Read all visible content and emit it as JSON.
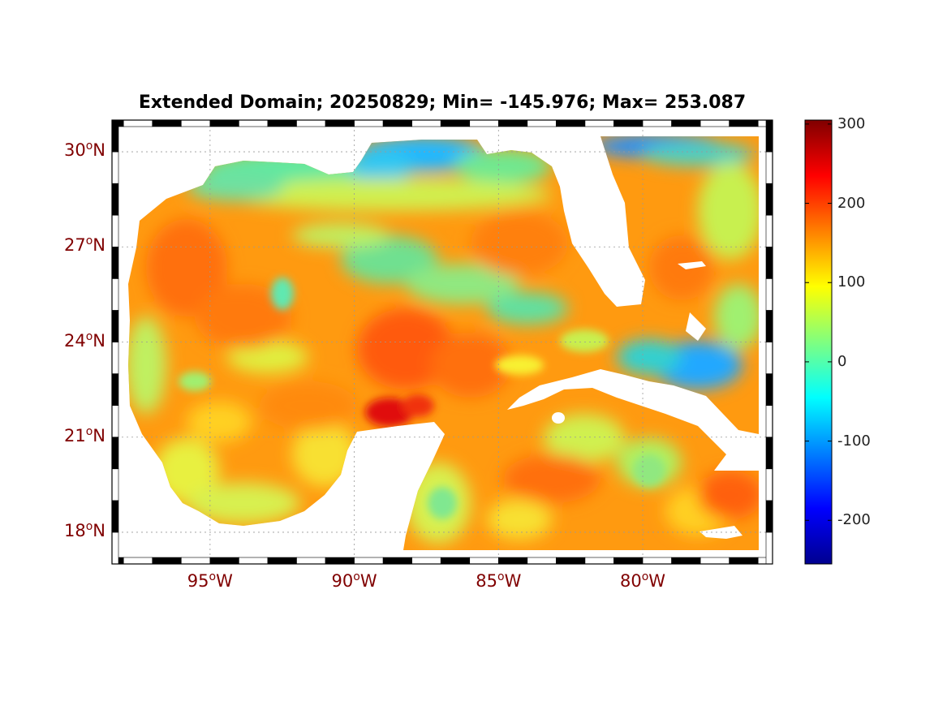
{
  "title": "Extended Domain; 20250829; Min= -145.976; Max= 253.087",
  "map": {
    "lat_ticks": [
      {
        "value": 30,
        "deg": "30",
        "hemi": "N"
      },
      {
        "value": 27,
        "deg": "27",
        "hemi": "N"
      },
      {
        "value": 24,
        "deg": "24",
        "hemi": "N"
      },
      {
        "value": 21,
        "deg": "21",
        "hemi": "N"
      },
      {
        "value": 18,
        "deg": "18",
        "hemi": "N"
      }
    ],
    "lon_ticks": [
      {
        "value": -95,
        "deg": "95",
        "hemi": "W"
      },
      {
        "value": -90,
        "deg": "90",
        "hemi": "W"
      },
      {
        "value": -85,
        "deg": "85",
        "hemi": "W"
      },
      {
        "value": -80,
        "deg": "80",
        "hemi": "W"
      }
    ],
    "degree_symbol": "o",
    "lon_range": [
      -98.4,
      -75.5
    ],
    "lat_range": [
      17.0,
      31.0
    ],
    "land_color": "#ffffff",
    "grid": true
  },
  "colorbar": {
    "range": [
      -255,
      305
    ],
    "ticks": [
      {
        "value": 300,
        "label": "300"
      },
      {
        "value": 200,
        "label": "200"
      },
      {
        "value": 100,
        "label": "100"
      },
      {
        "value": 0,
        "label": "0"
      },
      {
        "value": -100,
        "label": "-100"
      },
      {
        "value": -200,
        "label": "-200"
      }
    ],
    "colormap": "jet"
  }
}
